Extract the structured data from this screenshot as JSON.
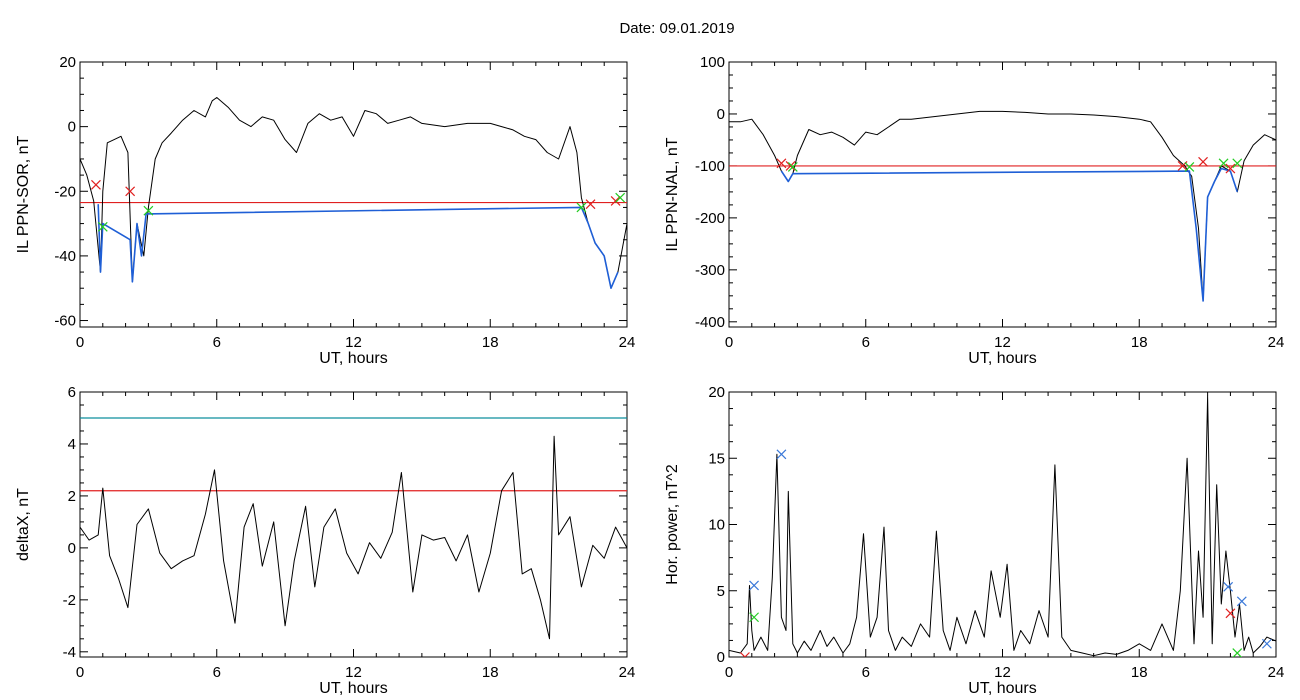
{
  "figure": {
    "title": "Date:  09.01.2019"
  },
  "colors": {
    "trace": "#000000",
    "active": "#1f5fd6",
    "threshold_red": "#e02020",
    "threshold_teal": "#0e8f9e",
    "marker_green": "#22cc22",
    "marker_blue": "#3a78d8"
  },
  "chart_data": [
    {
      "type": "line",
      "ylabel": "IL PPN-SOR, nT",
      "xlabel": "UT, hours",
      "xlim": [
        0,
        24
      ],
      "ylim": [
        -62,
        20
      ],
      "xticks": [
        "0",
        "6",
        "12",
        "18",
        "24"
      ],
      "yticks": [
        "20",
        "0",
        "-20",
        "-40",
        "-60"
      ],
      "grid": false,
      "thresholds": [
        {
          "y": -23.5,
          "color": "red"
        }
      ],
      "series": [
        {
          "color": "black",
          "x": [
            0,
            0.3,
            0.6,
            0.9,
            1.0,
            1.2,
            1.5,
            1.8,
            2.1,
            2.3,
            2.5,
            2.8,
            3.0,
            3.3,
            3.6,
            4.0,
            4.5,
            5.0,
            5.5,
            5.8,
            6.0,
            6.5,
            7.0,
            7.5,
            8.0,
            8.5,
            9.0,
            9.5,
            10.0,
            10.5,
            11.0,
            11.5,
            12.0,
            12.5,
            13.0,
            13.5,
            14.0,
            14.5,
            15.0,
            16.0,
            17.0,
            18.0,
            18.5,
            19.0,
            19.5,
            20.0,
            20.5,
            21.0,
            21.5,
            21.8,
            22.0,
            22.3,
            22.6,
            23.0,
            23.3,
            23.6,
            24.0
          ],
          "y": [
            -10,
            -15,
            -23,
            -45,
            -20,
            -5,
            -4,
            -3,
            -8,
            -48,
            -30,
            -40,
            -25,
            -10,
            -5,
            -2,
            2,
            5,
            3,
            8,
            9,
            6,
            2,
            0,
            3,
            2,
            -4,
            -8,
            1,
            4,
            2,
            3,
            -3,
            5,
            4,
            1,
            2,
            3,
            1,
            0,
            1,
            1,
            0,
            -1,
            -3,
            -4,
            -8,
            -10,
            0,
            -8,
            -22,
            -30,
            -36,
            -40,
            -50,
            -45,
            -30
          ]
        },
        {
          "color": "blue",
          "x": [
            0.8,
            0.9,
            1.0,
            2.2,
            2.3,
            2.5,
            2.7,
            2.9,
            22.0,
            22.3,
            22.6,
            23.0,
            23.3,
            23.6
          ],
          "y": [
            -24,
            -45,
            -30,
            -35,
            -48,
            -30,
            -40,
            -27,
            -25,
            -30,
            -36,
            -40,
            -50,
            -45
          ]
        }
      ],
      "markers": [
        {
          "x": 0.7,
          "y": -18,
          "color": "red"
        },
        {
          "x": 2.2,
          "y": -20,
          "color": "red"
        },
        {
          "x": 1.0,
          "y": -31,
          "color": "green"
        },
        {
          "x": 3.0,
          "y": -26,
          "color": "green"
        },
        {
          "x": 22.4,
          "y": -24,
          "color": "red"
        },
        {
          "x": 23.5,
          "y": -23,
          "color": "red"
        },
        {
          "x": 22.0,
          "y": -25,
          "color": "green"
        },
        {
          "x": 23.7,
          "y": -22,
          "color": "green"
        }
      ]
    },
    {
      "type": "line",
      "ylabel": "IL PPN-NAL, nT",
      "xlabel": "UT, hours",
      "xlim": [
        0,
        24
      ],
      "ylim": [
        -410,
        100
      ],
      "xticks": [
        "0",
        "6",
        "12",
        "18",
        "24"
      ],
      "yticks": [
        "100",
        "0",
        "-100",
        "-200",
        "-300",
        "-400"
      ],
      "grid": false,
      "thresholds": [
        {
          "y": -100,
          "color": "red"
        }
      ],
      "series": [
        {
          "color": "black",
          "x": [
            0,
            0.5,
            1.0,
            1.5,
            2.0,
            2.3,
            2.6,
            2.8,
            3.0,
            3.5,
            4.0,
            4.5,
            5.0,
            5.5,
            6.0,
            6.5,
            7.0,
            7.5,
            8.0,
            9.0,
            10.0,
            11.0,
            12.0,
            13.0,
            14.0,
            15.0,
            16.0,
            17.0,
            18.0,
            18.5,
            19.0,
            19.5,
            20.0,
            20.3,
            20.6,
            20.8,
            21.0,
            21.3,
            21.6,
            22.0,
            22.3,
            22.6,
            23.0,
            23.5,
            24.0
          ],
          "y": [
            -15,
            -15,
            -10,
            -40,
            -80,
            -110,
            -130,
            -115,
            -80,
            -30,
            -40,
            -35,
            -45,
            -60,
            -35,
            -40,
            -25,
            -10,
            -10,
            -5,
            0,
            5,
            5,
            3,
            0,
            0,
            -2,
            -5,
            -10,
            -15,
            -45,
            -80,
            -100,
            -120,
            -220,
            -360,
            -160,
            -130,
            -100,
            -110,
            -150,
            -90,
            -60,
            -40,
            -50
          ]
        },
        {
          "color": "blue",
          "x": [
            2.3,
            2.6,
            2.8,
            20.2,
            20.5,
            20.8,
            21.0,
            21.3,
            21.6,
            22.0,
            22.3
          ],
          "y": [
            -110,
            -130,
            -115,
            -110,
            -220,
            -360,
            -160,
            -130,
            -105,
            -110,
            -150
          ]
        }
      ],
      "markers": [
        {
          "x": 2.3,
          "y": -95,
          "color": "red"
        },
        {
          "x": 2.7,
          "y": -100,
          "color": "red"
        },
        {
          "x": 2.8,
          "y": -102,
          "color": "green"
        },
        {
          "x": 19.9,
          "y": -100,
          "color": "red"
        },
        {
          "x": 20.2,
          "y": -102,
          "color": "green"
        },
        {
          "x": 20.8,
          "y": -92,
          "color": "red"
        },
        {
          "x": 21.7,
          "y": -95,
          "color": "green"
        },
        {
          "x": 22.0,
          "y": -105,
          "color": "red"
        },
        {
          "x": 22.3,
          "y": -95,
          "color": "green"
        }
      ]
    },
    {
      "type": "line",
      "ylabel": "deltaX, nT",
      "xlabel": "UT, hours",
      "xlim": [
        0,
        24
      ],
      "ylim": [
        -4.2,
        6.0
      ],
      "xticks": [
        "0",
        "6",
        "12",
        "18",
        "24"
      ],
      "yticks": [
        "6",
        "4",
        "2",
        "0",
        "-2",
        "-4"
      ],
      "grid": false,
      "thresholds": [
        {
          "y": 5.0,
          "color": "teal"
        },
        {
          "y": 2.2,
          "color": "red"
        }
      ],
      "series": [
        {
          "color": "black",
          "x": [
            0,
            0.4,
            0.8,
            1.0,
            1.3,
            1.7,
            2.1,
            2.5,
            3.0,
            3.5,
            4.0,
            4.5,
            5.0,
            5.5,
            5.9,
            6.3,
            6.8,
            7.2,
            7.6,
            8.0,
            8.5,
            9.0,
            9.4,
            9.9,
            10.3,
            10.7,
            11.2,
            11.7,
            12.2,
            12.7,
            13.2,
            13.7,
            14.1,
            14.6,
            15.0,
            15.5,
            16.0,
            16.5,
            17.0,
            17.5,
            18.0,
            18.5,
            19.0,
            19.4,
            19.8,
            20.2,
            20.6,
            20.8,
            21.0,
            21.5,
            22.0,
            22.5,
            23.0,
            23.5,
            24.0
          ],
          "y": [
            0.8,
            0.3,
            0.5,
            2.3,
            -0.3,
            -1.2,
            -2.3,
            0.9,
            1.5,
            -0.2,
            -0.8,
            -0.5,
            -0.3,
            1.3,
            3.0,
            -0.5,
            -2.9,
            0.8,
            1.7,
            -0.7,
            1.0,
            -3.0,
            -0.5,
            1.6,
            -1.5,
            0.8,
            1.5,
            -0.2,
            -1.0,
            0.2,
            -0.4,
            0.6,
            2.9,
            -1.7,
            0.5,
            0.3,
            0.4,
            -0.5,
            0.5,
            -1.7,
            -0.2,
            2.2,
            2.9,
            -1.0,
            -0.8,
            -2.0,
            -3.5,
            4.3,
            0.5,
            1.2,
            -1.5,
            0.1,
            -0.4,
            0.8,
            0.0
          ]
        }
      ],
      "markers": []
    },
    {
      "type": "line",
      "ylabel": "Hor. power, nT^2",
      "xlabel": "UT, hours",
      "xlim": [
        0,
        24
      ],
      "ylim": [
        0,
        20
      ],
      "xticks": [
        "0",
        "6",
        "12",
        "18",
        "24"
      ],
      "yticks": [
        "20",
        "15",
        "10",
        "5",
        "0"
      ],
      "grid": false,
      "thresholds": [],
      "series": [
        {
          "color": "black",
          "x": [
            0,
            0.5,
            0.8,
            0.9,
            1.0,
            1.1,
            1.4,
            1.7,
            1.9,
            2.1,
            2.3,
            2.5,
            2.6,
            2.8,
            3.0,
            3.3,
            3.6,
            4.0,
            4.3,
            4.6,
            5.0,
            5.3,
            5.6,
            5.9,
            6.2,
            6.5,
            6.8,
            7.0,
            7.3,
            7.6,
            8.0,
            8.4,
            8.8,
            9.1,
            9.4,
            9.7,
            10.0,
            10.4,
            10.8,
            11.2,
            11.5,
            11.9,
            12.2,
            12.5,
            12.8,
            13.2,
            13.6,
            14.0,
            14.3,
            14.6,
            15.0,
            15.5,
            16.0,
            16.5,
            17.0,
            17.5,
            18.0,
            18.5,
            19.0,
            19.5,
            19.8,
            20.1,
            20.4,
            20.6,
            20.8,
            21.0,
            21.2,
            21.4,
            21.6,
            21.8,
            22.0,
            22.2,
            22.4,
            22.6,
            22.8,
            23.0,
            23.3,
            23.6,
            24.0
          ],
          "y": [
            0.5,
            0.3,
            1.0,
            5.4,
            2.0,
            0.5,
            1.5,
            0.5,
            6.0,
            15.3,
            3.0,
            2.0,
            12.5,
            1.0,
            0.3,
            1.2,
            0.5,
            2.0,
            0.8,
            1.5,
            0.3,
            1.0,
            3.0,
            9.3,
            1.5,
            3.0,
            9.8,
            2.0,
            0.5,
            1.5,
            0.8,
            2.5,
            1.5,
            9.5,
            2.0,
            0.5,
            3.0,
            1.0,
            3.5,
            1.5,
            6.5,
            3.0,
            7.0,
            0.5,
            2.0,
            1.0,
            3.5,
            1.5,
            14.5,
            1.5,
            0.5,
            0.3,
            0.1,
            0.3,
            0.2,
            0.5,
            1.0,
            0.5,
            2.5,
            0.5,
            5.0,
            15.0,
            1.0,
            8.0,
            3.0,
            19.7,
            1.0,
            13.0,
            4.0,
            8.0,
            5.0,
            1.5,
            4.0,
            0.5,
            1.5,
            0.3,
            0.8,
            1.5,
            1.2
          ]
        }
      ],
      "markers": [
        {
          "x": 1.1,
          "y": 5.4,
          "color": "blue"
        },
        {
          "x": 2.3,
          "y": 15.3,
          "color": "blue"
        },
        {
          "x": 0.7,
          "y": 0.0,
          "color": "red"
        },
        {
          "x": 1.1,
          "y": 3.0,
          "color": "green"
        },
        {
          "x": 21.9,
          "y": 5.3,
          "color": "blue"
        },
        {
          "x": 22.5,
          "y": 4.2,
          "color": "blue"
        },
        {
          "x": 22.0,
          "y": 3.3,
          "color": "red"
        },
        {
          "x": 22.3,
          "y": 0.3,
          "color": "green"
        },
        {
          "x": 23.6,
          "y": 1.0,
          "color": "blue"
        }
      ]
    }
  ]
}
